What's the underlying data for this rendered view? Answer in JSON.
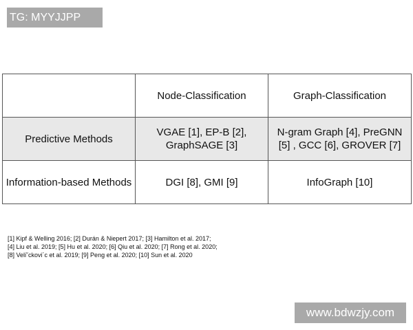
{
  "watermarks": {
    "top_left": "TG: MYYJJPP",
    "bottom_right": "www.bdwzjy.com"
  },
  "table": {
    "headers": [
      "",
      "Node-Classification",
      "Graph-Classification"
    ],
    "rows": [
      [
        "Predictive Methods",
        "VGAE [1], EP-B [2], GraphSAGE [3]",
        "N-gram Graph [4], PreGNN [5] , GCC [6], GROVER [7]"
      ],
      [
        "Information-based Methods",
        "DGI [8], GMI [9]",
        "InfoGraph [10]"
      ]
    ]
  },
  "references": [
    "[1] Kipf & Welling 2016; [2] Durán & Niepert 2017; [3] Hamilton et al. 2017;",
    "[4] Liu et al. 2019; [5] Hu et al. 2020; [6] Qiu et al. 2020; [7] Rong et al. 2020;",
    "[8] Veli˘ckovi´c et al. 2019; [9] Peng et al. 2020; [10] Sun et al. 2020"
  ]
}
